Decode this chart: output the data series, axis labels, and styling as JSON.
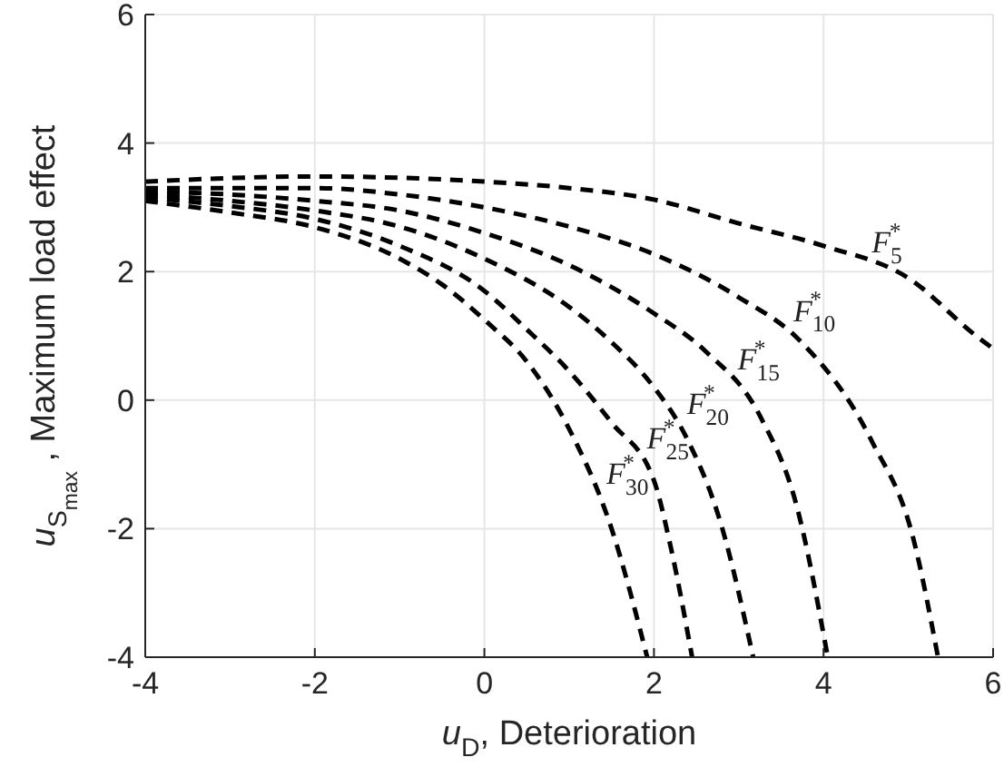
{
  "chart_data": {
    "type": "line",
    "xlabel": "u$_{D}$, Deterioration",
    "ylabel": "u$_{S}$$_{max}$ , Maximum load effect",
    "xlim": [
      -4,
      6
    ],
    "ylim": [
      -4,
      6
    ],
    "xticks": [
      -4,
      -2,
      0,
      2,
      4,
      6
    ],
    "yticks": [
      -4,
      -2,
      0,
      2,
      4,
      6
    ],
    "grid": true,
    "line_style": "dashed",
    "marker": "none",
    "series": [
      {
        "name": "F$_{5}$$^{*}$",
        "color": "#000000",
        "x": [
          -4,
          -2,
          0,
          1,
          2,
          3,
          4,
          5,
          5.8,
          6
        ],
        "values": [
          3.4,
          3.48,
          3.4,
          3.3,
          3.12,
          2.75,
          2.4,
          1.9,
          1.0,
          0.8
        ]
      },
      {
        "name": "F$_{10}$$^{*}$",
        "color": "#000000",
        "x": [
          -4,
          -3,
          -2,
          -1,
          0,
          1,
          2,
          3,
          3.71,
          4.57,
          5.06,
          5.35
        ],
        "values": [
          3.3,
          3.3,
          3.3,
          3.2,
          3.0,
          2.7,
          2.27,
          1.6,
          0.94,
          -0.64,
          -2.16,
          -4
        ]
      },
      {
        "name": "F$_{15}$$^{*}$",
        "color": "#000000",
        "x": [
          -4,
          -3,
          -2,
          -1,
          0,
          1,
          2,
          2.6,
          3.26,
          3.69,
          4.05
        ],
        "values": [
          3.25,
          3.2,
          3.1,
          2.95,
          2.6,
          2.1,
          1.35,
          0.77,
          -0.27,
          -1.68,
          -4
        ]
      },
      {
        "name": "F$_{20}$$^{*}$",
        "color": "#000000",
        "x": [
          -4,
          -3,
          -2,
          -1,
          0,
          1,
          1.5,
          2,
          2.37,
          2.8,
          3.17
        ],
        "values": [
          3.2,
          3.1,
          2.95,
          2.7,
          2.2,
          1.45,
          0.9,
          0.2,
          -0.55,
          -1.97,
          -4
        ]
      },
      {
        "name": "F$_{25}$$^{*}$",
        "color": "#000000",
        "x": [
          -4,
          -3,
          -2,
          -1,
          0,
          0.5,
          1,
          1.5,
          2,
          2.2,
          2.45
        ],
        "values": [
          3.15,
          3.02,
          2.82,
          2.4,
          1.7,
          1.1,
          0.45,
          -0.35,
          -1.25,
          -2.3,
          -4
        ]
      },
      {
        "name": "F$_{30}$$^{*}$",
        "color": "#000000",
        "x": [
          -4,
          -3,
          -2,
          -1,
          -0.5,
          0,
          0.5,
          1,
          1.5,
          1.92
        ],
        "values": [
          3.1,
          2.92,
          2.69,
          2.2,
          1.8,
          1.25,
          0.6,
          -0.45,
          -2.0,
          -4
        ]
      }
    ]
  }
}
